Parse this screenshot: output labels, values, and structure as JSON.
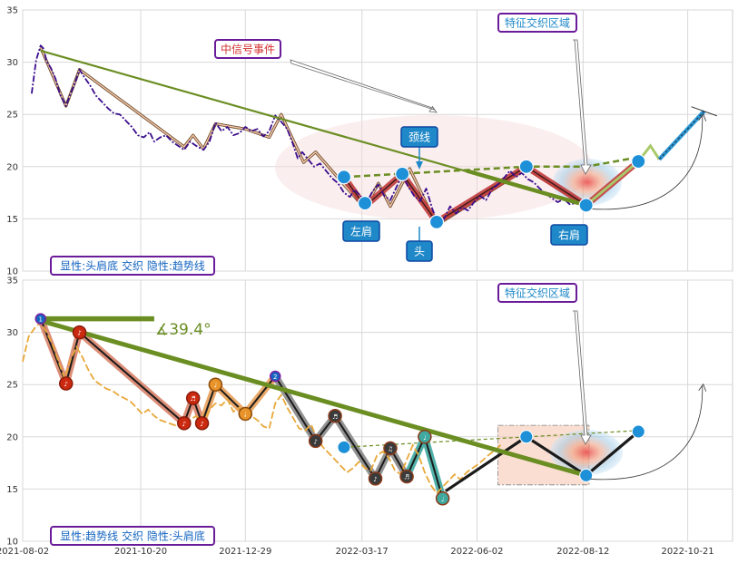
{
  "chart_data": [
    {
      "type": "line",
      "xlim": [
        "2021-08-02",
        "2022-11-20"
      ],
      "ylim": [
        10,
        35
      ],
      "yticks": [
        10,
        15,
        20,
        25,
        30,
        35
      ],
      "price": [
        [
          "2021-08-08",
          27.0
        ],
        [
          "2021-08-11",
          30.2
        ],
        [
          "2021-08-14",
          31.6
        ],
        [
          "2021-08-16",
          31.3
        ],
        [
          "2021-08-18",
          30.1
        ],
        [
          "2021-08-21",
          29.4
        ],
        [
          "2021-08-24",
          28.4
        ],
        [
          "2021-08-27",
          26.9
        ],
        [
          "2021-08-31",
          25.8
        ],
        [
          "2021-09-03",
          27.0
        ],
        [
          "2021-09-06",
          28.0
        ],
        [
          "2021-09-09",
          29.3
        ],
        [
          "2021-09-12",
          28.6
        ],
        [
          "2021-09-16",
          27.8
        ],
        [
          "2021-09-20",
          26.8
        ],
        [
          "2021-09-24",
          26.2
        ],
        [
          "2021-09-28",
          25.6
        ],
        [
          "2021-10-02",
          25.1
        ],
        [
          "2021-10-06",
          25.0
        ],
        [
          "2021-10-10",
          24.4
        ],
        [
          "2021-10-14",
          23.8
        ],
        [
          "2021-10-18",
          23.0
        ],
        [
          "2021-10-22",
          22.8
        ],
        [
          "2021-10-26",
          23.3
        ],
        [
          "2021-10-29",
          22.4
        ],
        [
          "2021-11-02",
          22.8
        ],
        [
          "2021-11-06",
          23.0
        ],
        [
          "2021-11-10",
          22.4
        ],
        [
          "2021-11-14",
          22.0
        ],
        [
          "2021-11-18",
          21.6
        ],
        [
          "2021-11-22",
          22.4
        ],
        [
          "2021-11-26",
          22.0
        ],
        [
          "2021-12-01",
          21.6
        ],
        [
          "2021-12-05",
          22.4
        ],
        [
          "2021-12-09",
          24.2
        ],
        [
          "2021-12-13",
          23.4
        ],
        [
          "2021-12-17",
          23.8
        ],
        [
          "2021-12-21",
          23.0
        ],
        [
          "2021-12-25",
          23.2
        ],
        [
          "2021-12-29",
          23.8
        ],
        [
          "2022-01-02",
          23.4
        ],
        [
          "2022-01-06",
          23.6
        ],
        [
          "2022-01-10",
          22.9
        ],
        [
          "2022-01-14",
          23.4
        ],
        [
          "2022-01-18",
          24.9
        ],
        [
          "2022-01-22",
          24.3
        ],
        [
          "2022-01-26",
          23.6
        ],
        [
          "2022-01-30",
          22.1
        ],
        [
          "2022-02-02",
          20.8
        ],
        [
          "2022-02-05",
          21.4
        ],
        [
          "2022-02-09",
          20.7
        ],
        [
          "2022-02-13",
          20.0
        ],
        [
          "2022-02-17",
          20.3
        ],
        [
          "2022-02-21",
          19.6
        ],
        [
          "2022-02-25",
          18.9
        ],
        [
          "2022-03-01",
          18.4
        ],
        [
          "2022-03-05",
          17.5
        ],
        [
          "2022-03-09",
          17.1
        ],
        [
          "2022-03-12",
          17.8
        ],
        [
          "2022-03-16",
          17.2
        ],
        [
          "2022-03-20",
          16.5
        ],
        [
          "2022-03-24",
          17.6
        ],
        [
          "2022-03-28",
          18.3
        ],
        [
          "2022-04-01",
          17.2
        ],
        [
          "2022-04-05",
          16.8
        ],
        [
          "2022-04-09",
          18.0
        ],
        [
          "2022-04-13",
          19.2
        ],
        [
          "2022-04-17",
          18.1
        ],
        [
          "2022-04-21",
          17.2
        ],
        [
          "2022-04-25",
          16.7
        ],
        [
          "2022-04-29",
          17.9
        ],
        [
          "2022-05-03",
          16.0
        ],
        [
          "2022-05-07",
          14.5
        ],
        [
          "2022-05-11",
          15.0
        ],
        [
          "2022-05-15",
          16.2
        ],
        [
          "2022-05-19",
          15.5
        ],
        [
          "2022-05-23",
          16.1
        ],
        [
          "2022-05-27",
          15.8
        ],
        [
          "2022-05-31",
          16.6
        ],
        [
          "2022-06-04",
          17.2
        ],
        [
          "2022-06-08",
          16.8
        ],
        [
          "2022-06-12",
          17.8
        ],
        [
          "2022-06-16",
          18.3
        ],
        [
          "2022-06-20",
          18.9
        ],
        [
          "2022-06-24",
          19.6
        ],
        [
          "2022-06-28",
          19.0
        ],
        [
          "2022-07-02",
          19.4
        ],
        [
          "2022-07-06",
          18.8
        ],
        [
          "2022-07-10",
          18.5
        ],
        [
          "2022-07-14",
          17.9
        ],
        [
          "2022-07-18",
          17.4
        ],
        [
          "2022-07-22",
          17.0
        ],
        [
          "2022-07-26",
          16.6
        ],
        [
          "2022-07-30",
          16.9
        ],
        [
          "2022-08-03",
          16.4
        ],
        [
          "2022-08-07",
          16.5
        ],
        [
          "2022-08-11",
          16.3
        ],
        [
          "2022-08-15",
          16.1
        ]
      ],
      "zigzag": [
        [
          "2021-08-14",
          31.4
        ],
        [
          "2021-08-31",
          25.8
        ],
        [
          "2021-09-09",
          29.3
        ],
        [
          "2021-11-18",
          21.9
        ],
        [
          "2021-11-24",
          23.0
        ],
        [
          "2021-12-01",
          21.7
        ],
        [
          "2021-12-09",
          24.1
        ],
        [
          "2021-12-29",
          23.6
        ],
        [
          "2022-01-14",
          22.8
        ],
        [
          "2022-01-22",
          25.0
        ],
        [
          "2022-02-06",
          20.4
        ],
        [
          "2022-02-14",
          21.4
        ],
        [
          "2022-03-03",
          18.6
        ],
        [
          "2022-03-19",
          16.0
        ],
        [
          "2022-03-28",
          18.4
        ],
        [
          "2022-04-05",
          16.2
        ],
        [
          "2022-04-18",
          19.8
        ],
        [
          "2022-05-06",
          14.4
        ],
        [
          "2022-07-05",
          19.8
        ],
        [
          "2022-08-14",
          16.3
        ]
      ],
      "trendline": [
        [
          "2021-08-14",
          31.1
        ],
        [
          "2022-08-14",
          16.3
        ]
      ],
      "neckline": [
        [
          "2022-03-05",
          19.0
        ],
        [
          "2022-07-05",
          20.0
        ],
        [
          "2022-08-14",
          20.0
        ],
        [
          "2022-09-18",
          20.9
        ]
      ],
      "projection": [
        [
          "2022-08-14",
          16.3
        ],
        [
          "2022-09-18",
          20.5
        ],
        [
          "2022-09-26",
          22.0
        ],
        [
          "2022-10-02",
          20.7
        ],
        [
          "2022-11-01",
          25.3
        ]
      ],
      "pattern_points": [
        [
          "2022-03-05",
          19.0
        ],
        [
          "2022-03-19",
          16.5
        ],
        [
          "2022-04-13",
          19.3
        ],
        [
          "2022-05-06",
          14.7
        ],
        [
          "2022-07-05",
          20.0
        ],
        [
          "2022-08-14",
          16.3
        ],
        [
          "2022-09-18",
          20.5
        ]
      ],
      "annotations": {
        "signal": "中信号事件",
        "interweave": "特征交织区域",
        "neckline": "颈线",
        "left_shoulder": "左肩",
        "head": "头",
        "right_shoulder": "右肩"
      },
      "legend": "显性:头肩底 交织 隐性:趋势线",
      "colors": {
        "price": "#3a0d8c",
        "trend": "#6b8e23",
        "zigzag": "#c23b3b",
        "pattern_point": "#1e90d8",
        "projection": "#2e9bd6"
      }
    },
    {
      "type": "line",
      "xlim": [
        "2021-08-02",
        "2022-11-20"
      ],
      "ylim": [
        10,
        35
      ],
      "yticks": [
        10,
        15,
        20,
        25,
        30,
        35
      ],
      "xticks": [
        "2021-08-02",
        "2021-10-20",
        "2021-12-29",
        "2022-03-17",
        "2022-06-02",
        "2022-08-12",
        "2022-10-21"
      ],
      "price": [
        [
          "2021-08-02",
          27.2
        ],
        [
          "2021-08-06",
          29.6
        ],
        [
          "2021-08-10",
          30.4
        ],
        [
          "2021-08-14",
          31.0
        ],
        [
          "2021-08-18",
          30.0
        ],
        [
          "2021-08-22",
          28.8
        ],
        [
          "2021-08-26",
          27.2
        ],
        [
          "2021-08-30",
          25.6
        ],
        [
          "2021-09-03",
          27.4
        ],
        [
          "2021-09-07",
          28.6
        ],
        [
          "2021-09-11",
          27.6
        ],
        [
          "2021-09-15",
          26.4
        ],
        [
          "2021-09-19",
          25.4
        ],
        [
          "2021-09-23",
          25.0
        ],
        [
          "2021-09-27",
          24.6
        ],
        [
          "2021-10-01",
          24.4
        ],
        [
          "2021-10-05",
          24.0
        ],
        [
          "2021-10-09",
          23.7
        ],
        [
          "2021-10-13",
          23.4
        ],
        [
          "2021-10-17",
          22.8
        ],
        [
          "2021-10-21",
          22.2
        ],
        [
          "2021-10-25",
          22.6
        ],
        [
          "2021-10-29",
          22.0
        ],
        [
          "2021-11-02",
          21.6
        ],
        [
          "2021-11-06",
          21.4
        ],
        [
          "2021-11-10",
          21.2
        ],
        [
          "2021-11-14",
          21.0
        ],
        [
          "2021-11-18",
          20.8
        ],
        [
          "2021-11-22",
          21.6
        ],
        [
          "2021-11-26",
          22.0
        ],
        [
          "2021-12-01",
          21.4
        ],
        [
          "2021-12-05",
          22.6
        ],
        [
          "2021-12-09",
          23.2
        ],
        [
          "2021-12-13",
          23.0
        ],
        [
          "2021-12-17",
          23.6
        ],
        [
          "2021-12-21",
          22.4
        ],
        [
          "2021-12-25",
          22.8
        ],
        [
          "2021-12-29",
          22.2
        ],
        [
          "2022-01-02",
          22.0
        ],
        [
          "2022-01-06",
          21.6
        ],
        [
          "2022-01-10",
          21.0
        ],
        [
          "2022-01-14",
          20.8
        ],
        [
          "2022-01-18",
          23.2
        ],
        [
          "2022-01-22",
          24.0
        ],
        [
          "2022-01-26",
          22.8
        ],
        [
          "2022-01-30",
          21.8
        ],
        [
          "2022-02-03",
          20.8
        ],
        [
          "2022-02-07",
          20.6
        ],
        [
          "2022-02-11",
          21.2
        ],
        [
          "2022-02-15",
          19.8
        ],
        [
          "2022-02-19",
          19.0
        ],
        [
          "2022-02-23",
          18.4
        ],
        [
          "2022-02-27",
          17.8
        ],
        [
          "2022-03-03",
          17.2
        ],
        [
          "2022-03-07",
          16.6
        ],
        [
          "2022-03-11",
          17.0
        ],
        [
          "2022-03-15",
          17.6
        ],
        [
          "2022-03-19",
          17.0
        ],
        [
          "2022-03-23",
          16.8
        ],
        [
          "2022-03-27",
          18.2
        ],
        [
          "2022-03-31",
          18.6
        ],
        [
          "2022-04-04",
          18.0
        ],
        [
          "2022-04-08",
          16.8
        ],
        [
          "2022-04-12",
          16.4
        ],
        [
          "2022-04-16",
          17.8
        ],
        [
          "2022-04-20",
          19.2
        ],
        [
          "2022-04-24",
          18.2
        ],
        [
          "2022-04-28",
          16.6
        ],
        [
          "2022-05-02",
          15.4
        ],
        [
          "2022-05-06",
          14.6
        ],
        [
          "2022-05-10",
          15.2
        ],
        [
          "2022-05-14",
          15.8
        ],
        [
          "2022-05-18",
          16.4
        ],
        [
          "2022-05-22",
          15.9
        ],
        [
          "2022-05-26",
          16.6
        ],
        [
          "2022-05-30",
          17.0
        ],
        [
          "2022-06-03",
          17.4
        ],
        [
          "2022-06-07",
          17.9
        ],
        [
          "2022-06-11",
          18.4
        ],
        [
          "2022-06-15",
          18.8
        ],
        [
          "2022-06-19",
          19.4
        ]
      ],
      "zigzag": [
        [
          "2021-08-14",
          31.3
        ],
        [
          "2021-08-31",
          25.1
        ],
        [
          "2021-09-09",
          30.0
        ],
        [
          "2021-11-18",
          21.3
        ],
        [
          "2021-11-24",
          23.7
        ],
        [
          "2021-11-30",
          21.3
        ],
        [
          "2021-12-09",
          25.0
        ],
        [
          "2021-12-29",
          22.2
        ],
        [
          "2022-01-18",
          25.8
        ],
        [
          "2022-02-14",
          19.6
        ],
        [
          "2022-02-27",
          22.0
        ],
        [
          "2022-03-26",
          16.0
        ],
        [
          "2022-04-05",
          18.9
        ],
        [
          "2022-04-16",
          16.2
        ],
        [
          "2022-04-28",
          20.0
        ],
        [
          "2022-05-10",
          14.1
        ]
      ],
      "zigzag_labels": [
        "1",
        "♪",
        "♪",
        "♪",
        "♬",
        "♪",
        "♩",
        "♩",
        "2",
        "♪",
        "♬",
        "♪",
        "♫",
        "♬",
        "♩",
        "♩"
      ],
      "trendline": [
        [
          "2021-08-14",
          31.1
        ],
        [
          "2022-08-14",
          16.3
        ]
      ],
      "horizontal_ray": [
        [
          "2021-08-14",
          31.3
        ],
        [
          "2021-10-29",
          31.3
        ]
      ],
      "angle_label": "∡39.4°",
      "head_shoulders": [
        [
          "2022-05-12",
          14.8
        ],
        [
          "2022-07-05",
          20.0
        ],
        [
          "2022-08-14",
          16.3
        ],
        [
          "2022-09-18",
          20.5
        ]
      ],
      "neckline": [
        [
          "2022-03-05",
          19.0
        ],
        [
          "2022-09-18",
          20.6
        ]
      ],
      "rect_zone": {
        "x0": "2022-06-16",
        "x1": "2022-08-16",
        "y0": 15.4,
        "y1": 21.1
      },
      "annotations": {
        "interweave": "特征交织区域"
      },
      "legend": "显性:趋势线 交织 隐性:头肩底",
      "colors": {
        "price": "#e9a83a",
        "trend": "#6b8e23",
        "zigzag_a": "#d9826a",
        "zigzag_b": "#888888",
        "zigzag_c": "#3fa9a0"
      }
    }
  ]
}
